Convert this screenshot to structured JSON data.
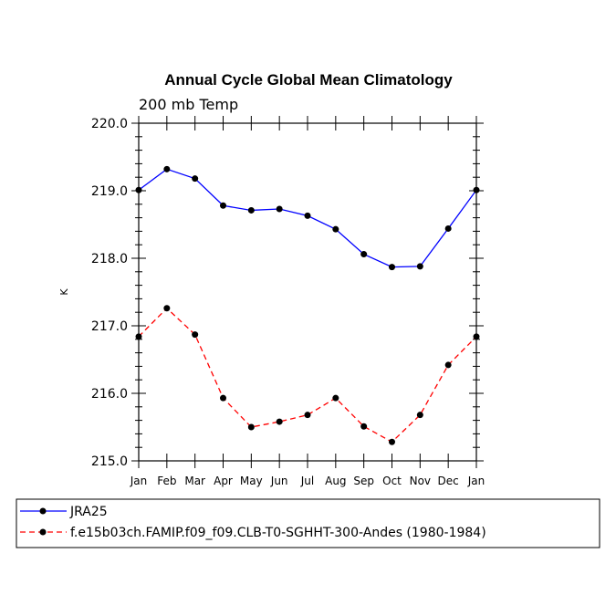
{
  "chart_data": {
    "type": "line",
    "title": "Annual Cycle Global Mean Climatology",
    "subtitle": "200 mb Temp",
    "ylabel": "K",
    "ylim": [
      215.0,
      220.0
    ],
    "yticks": [
      "215.0",
      "216.0",
      "217.0",
      "218.0",
      "219.0",
      "220.0"
    ],
    "categories": [
      "Jan",
      "Feb",
      "Mar",
      "Apr",
      "May",
      "Jun",
      "Jul",
      "Aug",
      "Sep",
      "Oct",
      "Nov",
      "Dec",
      "Jan"
    ],
    "series": [
      {
        "name": "JRA25",
        "color": "#0000ff",
        "dash": "solid",
        "values": [
          219.01,
          219.32,
          219.18,
          218.78,
          218.71,
          218.73,
          218.63,
          218.43,
          218.06,
          217.87,
          217.88,
          218.44,
          219.01
        ]
      },
      {
        "name": "f.e15b03ch.FAMIP.f09_f09.CLB-T0-SGHHT-300-Andes (1980-1984)",
        "color": "#ff0000",
        "dash": "dashed",
        "values": [
          216.84,
          217.26,
          216.87,
          215.93,
          215.5,
          215.58,
          215.68,
          215.93,
          215.51,
          215.28,
          215.68,
          216.42,
          216.84
        ]
      }
    ],
    "legend_position": "bottom"
  }
}
